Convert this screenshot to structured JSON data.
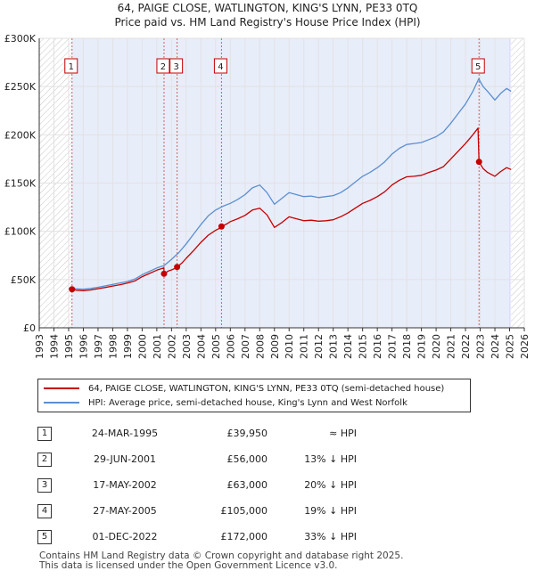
{
  "title_line1": "64, PAIGE CLOSE, WATLINGTON, KING'S LYNN, PE33 0TQ",
  "title_line2": "Price paid vs. HM Land Registry's House Price Index (HPI)",
  "chart_data": {
    "type": "line",
    "xlim": [
      1993,
      2026
    ],
    "ylim": [
      0,
      300000
    ],
    "yticks": [
      {
        "value": 0,
        "label": "£0"
      },
      {
        "value": 50000,
        "label": "£50K"
      },
      {
        "value": 100000,
        "label": "£100K"
      },
      {
        "value": 150000,
        "label": "£150K"
      },
      {
        "value": 200000,
        "label": "£200K"
      },
      {
        "value": 250000,
        "label": "£250K"
      },
      {
        "value": 300000,
        "label": "£300K"
      }
    ],
    "xticks": [
      "1993",
      "1994",
      "1995",
      "1996",
      "1997",
      "1998",
      "1999",
      "2000",
      "2001",
      "2002",
      "2003",
      "2004",
      "2005",
      "2006",
      "2007",
      "2008",
      "2009",
      "2010",
      "2011",
      "2012",
      "2013",
      "2014",
      "2015",
      "2016",
      "2017",
      "2018",
      "2019",
      "2020",
      "2021",
      "2022",
      "2023",
      "2024",
      "2025",
      "2026"
    ],
    "hatched_regions": [
      [
        1993,
        1995.22
      ],
      [
        2025.1,
        2026
      ]
    ],
    "shaded_region": [
      1995.22,
      2025.1
    ],
    "sales": [
      {
        "id": "1",
        "x": 1995.23,
        "price": 39950
      },
      {
        "id": "2",
        "x": 2001.49,
        "price": 56000
      },
      {
        "id": "3",
        "x": 2002.38,
        "price": 63000
      },
      {
        "id": "4",
        "x": 2005.4,
        "price": 105000
      },
      {
        "id": "5",
        "x": 2022.92,
        "price": 172000
      }
    ],
    "series": [
      {
        "name": "HPI: Average price, semi-detached house, King's Lynn and West Norfolk",
        "color": "#5b8fd0",
        "points": [
          [
            1995.0,
            41000
          ],
          [
            1995.5,
            40500
          ],
          [
            1996.0,
            40000
          ],
          [
            1996.5,
            40800
          ],
          [
            1997.0,
            42000
          ],
          [
            1997.5,
            43500
          ],
          [
            1998.0,
            45000
          ],
          [
            1998.5,
            46500
          ],
          [
            1999.0,
            48000
          ],
          [
            1999.5,
            50500
          ],
          [
            2000.0,
            55000
          ],
          [
            2000.5,
            58500
          ],
          [
            2001.0,
            62000
          ],
          [
            2001.5,
            64500
          ],
          [
            2002.0,
            71000
          ],
          [
            2002.5,
            78000
          ],
          [
            2003.0,
            87000
          ],
          [
            2003.5,
            97000
          ],
          [
            2004.0,
            107000
          ],
          [
            2004.5,
            116000
          ],
          [
            2005.0,
            122000
          ],
          [
            2005.5,
            126000
          ],
          [
            2006.0,
            129000
          ],
          [
            2006.5,
            133000
          ],
          [
            2007.0,
            138000
          ],
          [
            2007.5,
            145000
          ],
          [
            2008.0,
            148000
          ],
          [
            2008.5,
            140000
          ],
          [
            2009.0,
            128000
          ],
          [
            2009.5,
            134000
          ],
          [
            2010.0,
            140000
          ],
          [
            2010.5,
            138000
          ],
          [
            2011.0,
            136000
          ],
          [
            2011.5,
            136500
          ],
          [
            2012.0,
            135000
          ],
          [
            2012.5,
            136000
          ],
          [
            2013.0,
            137000
          ],
          [
            2013.5,
            140000
          ],
          [
            2014.0,
            145000
          ],
          [
            2014.5,
            151000
          ],
          [
            2015.0,
            157000
          ],
          [
            2015.5,
            161000
          ],
          [
            2016.0,
            166000
          ],
          [
            2016.5,
            172000
          ],
          [
            2017.0,
            180000
          ],
          [
            2017.5,
            186000
          ],
          [
            2018.0,
            190000
          ],
          [
            2018.5,
            191000
          ],
          [
            2019.0,
            192000
          ],
          [
            2019.5,
            195000
          ],
          [
            2020.0,
            198000
          ],
          [
            2020.5,
            203000
          ],
          [
            2021.0,
            212000
          ],
          [
            2021.5,
            222000
          ],
          [
            2022.0,
            232000
          ],
          [
            2022.5,
            245000
          ],
          [
            2022.9,
            258000
          ],
          [
            2023.2,
            250000
          ],
          [
            2023.5,
            245000
          ],
          [
            2024.0,
            236000
          ],
          [
            2024.4,
            243000
          ],
          [
            2024.8,
            248000
          ],
          [
            2025.1,
            245000
          ]
        ]
      },
      {
        "name": "64, PAIGE CLOSE, WATLINGTON, KING'S LYNN, PE33 0TQ (semi-detached house)",
        "color": "#c40000",
        "points": [
          [
            1995.23,
            39950
          ],
          [
            1995.5,
            39000
          ],
          [
            1996.0,
            38500
          ],
          [
            1996.5,
            39200
          ],
          [
            1997.0,
            40500
          ],
          [
            1997.5,
            41800
          ],
          [
            1998.0,
            43300
          ],
          [
            1998.5,
            44700
          ],
          [
            1999.0,
            46300
          ],
          [
            1999.5,
            48600
          ],
          [
            2000.0,
            53000
          ],
          [
            2000.5,
            56300
          ],
          [
            2001.0,
            59700
          ],
          [
            2001.48,
            62000
          ],
          [
            2001.49,
            56000
          ],
          [
            2001.8,
            59000
          ],
          [
            2002.0,
            60000
          ],
          [
            2002.37,
            62500
          ],
          [
            2002.38,
            63000
          ],
          [
            2002.7,
            67000
          ],
          [
            2003.0,
            72000
          ],
          [
            2003.5,
            80000
          ],
          [
            2004.0,
            88500
          ],
          [
            2004.5,
            96000
          ],
          [
            2005.0,
            101000
          ],
          [
            2005.39,
            104000
          ],
          [
            2005.4,
            105000
          ],
          [
            2005.8,
            108000
          ],
          [
            2006.0,
            110000
          ],
          [
            2006.5,
            113000
          ],
          [
            2007.0,
            116500
          ],
          [
            2007.5,
            122000
          ],
          [
            2008.0,
            124000
          ],
          [
            2008.5,
            117000
          ],
          [
            2009.0,
            104000
          ],
          [
            2009.5,
            109000
          ],
          [
            2010.0,
            115000
          ],
          [
            2010.5,
            113000
          ],
          [
            2011.0,
            111000
          ],
          [
            2011.5,
            111500
          ],
          [
            2012.0,
            110500
          ],
          [
            2012.5,
            111000
          ],
          [
            2013.0,
            112000
          ],
          [
            2013.5,
            115000
          ],
          [
            2014.0,
            119000
          ],
          [
            2014.5,
            124000
          ],
          [
            2015.0,
            129000
          ],
          [
            2015.5,
            132000
          ],
          [
            2016.0,
            136000
          ],
          [
            2016.5,
            141000
          ],
          [
            2017.0,
            148000
          ],
          [
            2017.5,
            153000
          ],
          [
            2018.0,
            156500
          ],
          [
            2018.5,
            157000
          ],
          [
            2019.0,
            158000
          ],
          [
            2019.5,
            161000
          ],
          [
            2020.0,
            163500
          ],
          [
            2020.5,
            167000
          ],
          [
            2021.0,
            175000
          ],
          [
            2021.5,
            183000
          ],
          [
            2022.0,
            191000
          ],
          [
            2022.5,
            200000
          ],
          [
            2022.85,
            207000
          ],
          [
            2022.92,
            172000
          ],
          [
            2023.2,
            165000
          ],
          [
            2023.5,
            161000
          ],
          [
            2024.0,
            157000
          ],
          [
            2024.4,
            162000
          ],
          [
            2024.8,
            166000
          ],
          [
            2025.1,
            164000
          ]
        ]
      }
    ]
  },
  "legend": {
    "property_label": "64, PAIGE CLOSE, WATLINGTON, KING'S LYNN, PE33 0TQ (semi-detached house)",
    "hpi_label": "HPI: Average price, semi-detached house, King's Lynn and West Norfolk"
  },
  "sales_table": [
    {
      "num": "1",
      "date": "24-MAR-1995",
      "price": "£39,950",
      "hpi": "≈ HPI"
    },
    {
      "num": "2",
      "date": "29-JUN-2001",
      "price": "£56,000",
      "hpi": "13% ↓ HPI"
    },
    {
      "num": "3",
      "date": "17-MAY-2002",
      "price": "£63,000",
      "hpi": "20% ↓ HPI"
    },
    {
      "num": "4",
      "date": "27-MAY-2005",
      "price": "£105,000",
      "hpi": "19% ↓ HPI"
    },
    {
      "num": "5",
      "date": "01-DEC-2022",
      "price": "£172,000",
      "hpi": "33% ↓ HPI"
    }
  ],
  "footer_line1": "Contains HM Land Registry data © Crown copyright and database right 2025.",
  "footer_line2": "This data is licensed under the Open Government Licence v3.0.",
  "colors": {
    "property": "#c40000",
    "hpi": "#5b8fd0",
    "shade": "#e8edfa"
  }
}
